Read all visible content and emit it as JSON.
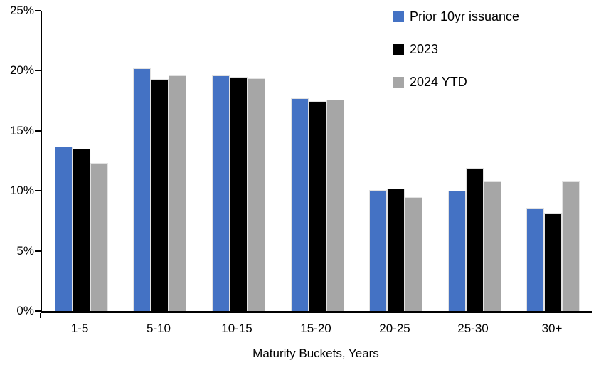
{
  "chart_data": {
    "type": "bar",
    "title": "",
    "xlabel": "Maturity Buckets, Years",
    "ylabel": "",
    "ylim": [
      0,
      25
    ],
    "ytick_step": 5,
    "yticks": [
      "0%",
      "5%",
      "10%",
      "15%",
      "20%",
      "25%"
    ],
    "grid": false,
    "legend_position": "top-right",
    "categories": [
      "1-5",
      "5-10",
      "10-15",
      "15-20",
      "20-25",
      "25-30",
      "30+"
    ],
    "series": [
      {
        "name": "Prior 10yr issuance",
        "color": "#4472C4",
        "values": [
          13.7,
          20.2,
          19.6,
          17.7,
          10.1,
          10.0,
          8.6
        ]
      },
      {
        "name": "2023",
        "color": "#000000",
        "values": [
          13.5,
          19.3,
          19.5,
          17.5,
          10.2,
          11.9,
          8.1
        ]
      },
      {
        "name": "2024 YTD",
        "color": "#A6A6A6",
        "values": [
          12.3,
          19.6,
          19.4,
          17.6,
          9.5,
          10.8,
          10.8
        ]
      }
    ]
  }
}
